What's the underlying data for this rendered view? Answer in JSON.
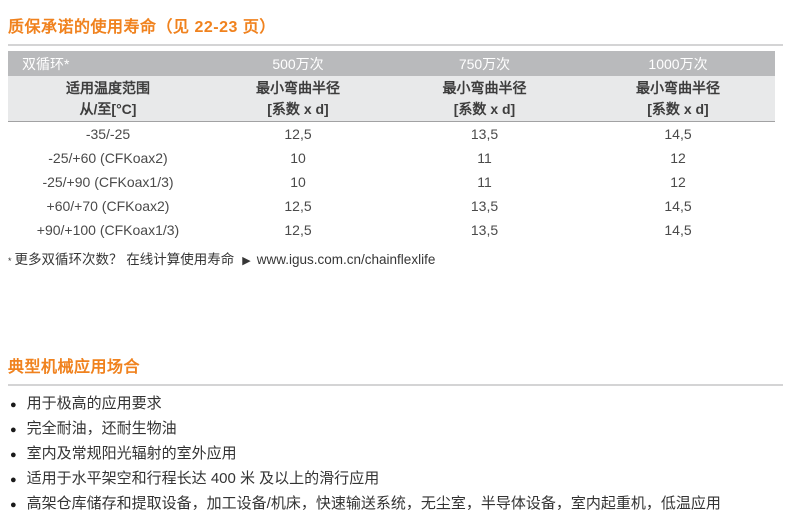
{
  "colors": {
    "accent_orange": "#F0821E",
    "table_header_bg": "#b9babc",
    "table_subheader_bg": "#e8e9ea",
    "rule_gray": "#d4d4d5"
  },
  "lifetime": {
    "title": "质保承诺的使用寿命（见 22-23 页）",
    "table": {
      "header": [
        "双循环*",
        "500万次",
        "750万次",
        "1000万次"
      ],
      "subheader": [
        "适用温度范围\n从/至[°C]",
        "最小弯曲半径\n[系数 x d]",
        "最小弯曲半径\n[系数 x d]",
        "最小弯曲半径\n[系数 x d]"
      ],
      "rows": [
        {
          "range": "-35/-25",
          "values": [
            "12,5",
            "13,5",
            "14,5"
          ]
        },
        {
          "range": "-25/+60 (CFKoax2)",
          "values": [
            "10",
            "11",
            "12"
          ]
        },
        {
          "range": "-25/+90 (CFKoax1/3)",
          "values": [
            "10",
            "11",
            "12"
          ]
        },
        {
          "range": "+60/+70 (CFKoax2)",
          "values": [
            "12,5",
            "13,5",
            "14,5"
          ]
        },
        {
          "range": "+90/+100 (CFKoax1/3)",
          "values": [
            "12,5",
            "13,5",
            "14,5"
          ]
        }
      ]
    },
    "footnote": {
      "marker": "*",
      "text": "更多双循环次数？ 在线计算使用寿命",
      "arrow_icon": "▶",
      "url": "www.igus.com.cn/chainflexlife"
    }
  },
  "applications": {
    "title": "典型机械应用场合",
    "bullet_icon": "●",
    "items": [
      "用于极高的应用要求",
      "完全耐油，还耐生物油",
      "室内及常规阳光辐射的室外应用",
      "适用于水平架空和行程长达 400 米 及以上的滑行应用",
      "高架仓库储存和提取设备，加工设备/机床，快速输送系统，无尘室，半导体设备，室内起重机，低温应用"
    ]
  }
}
